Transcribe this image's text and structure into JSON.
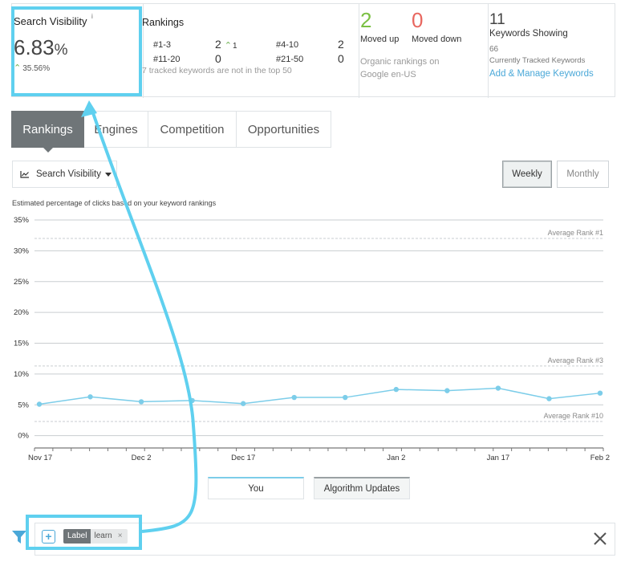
{
  "search_visibility": {
    "title": "Search Visibility",
    "info_icon": "i",
    "value": "6.83",
    "unit": "%",
    "change": "35.56%"
  },
  "rankings_summary": {
    "title": "Rankings",
    "rows": [
      {
        "label": "#1-3",
        "count": "2",
        "delta": "1"
      },
      {
        "label": "#4-10",
        "count": "2"
      },
      {
        "label": "#11-20",
        "count": "0"
      },
      {
        "label": "#21-50",
        "count": "0"
      }
    ],
    "note": "7 tracked keywords are not in the top 50"
  },
  "movement": {
    "moved_up_count": "2",
    "moved_up_label": "Moved up",
    "moved_down_count": "0",
    "moved_down_label": "Moved down",
    "note": "Organic rankings on Google en-US"
  },
  "keywords": {
    "showing_count": "11",
    "showing_label": "Keywords Showing",
    "tracked_count": "66",
    "tracked_label": "Currently Tracked Keywords",
    "manage_link": "Add & Manage Keywords"
  },
  "tabs": [
    {
      "label": "Rankings",
      "active": true
    },
    {
      "label": "Engines"
    },
    {
      "label": "Competition"
    },
    {
      "label": "Opportunities"
    }
  ],
  "controls": {
    "metric_select": "Search Visibility",
    "weekly": "Weekly",
    "monthly": "Monthly",
    "selected_period": "Weekly"
  },
  "chart_caption": "Estimated percentage of clicks based on your keyword rankings",
  "chart_data": {
    "type": "line",
    "x": [
      "Nov 17",
      "Nov 24",
      "Dec 2",
      "Dec 9",
      "Dec 17",
      "Dec 24",
      "Dec 31",
      "Jan 2",
      "Jan 9",
      "Jan 17",
      "Jan 24",
      "Feb 2"
    ],
    "x_ticks": [
      "Nov 17",
      "Dec 2",
      "Dec 17",
      "Jan 2",
      "Jan 17",
      "Feb 2"
    ],
    "series": [
      {
        "name": "You",
        "color": "#7ccde9",
        "values": [
          5.1,
          6.3,
          5.5,
          5.7,
          5.2,
          6.2,
          6.2,
          7.5,
          7.3,
          7.7,
          6.0,
          6.9
        ]
      }
    ],
    "y_ticks": [
      "0%",
      "5%",
      "10%",
      "15%",
      "20%",
      "25%",
      "30%",
      "35%"
    ],
    "ylim": [
      -2,
      35
    ],
    "reference_lines": [
      {
        "label": "Average Rank #1",
        "value": 32
      },
      {
        "label": "Average Rank #3",
        "value": 11.3
      },
      {
        "label": "Average Rank #10",
        "value": 2.3
      }
    ],
    "grid": true
  },
  "legend": {
    "you": "You",
    "algorithm_updates": "Algorithm Updates"
  },
  "filter": {
    "add_label": "+",
    "chip_key": "Label",
    "chip_value": "learn",
    "chip_remove": "×"
  },
  "colors": {
    "accent": "#4aa8d8",
    "annotation": "#5fd0ef",
    "up": "#7bc043",
    "down": "#e8675f",
    "series": "#7ccde9"
  }
}
